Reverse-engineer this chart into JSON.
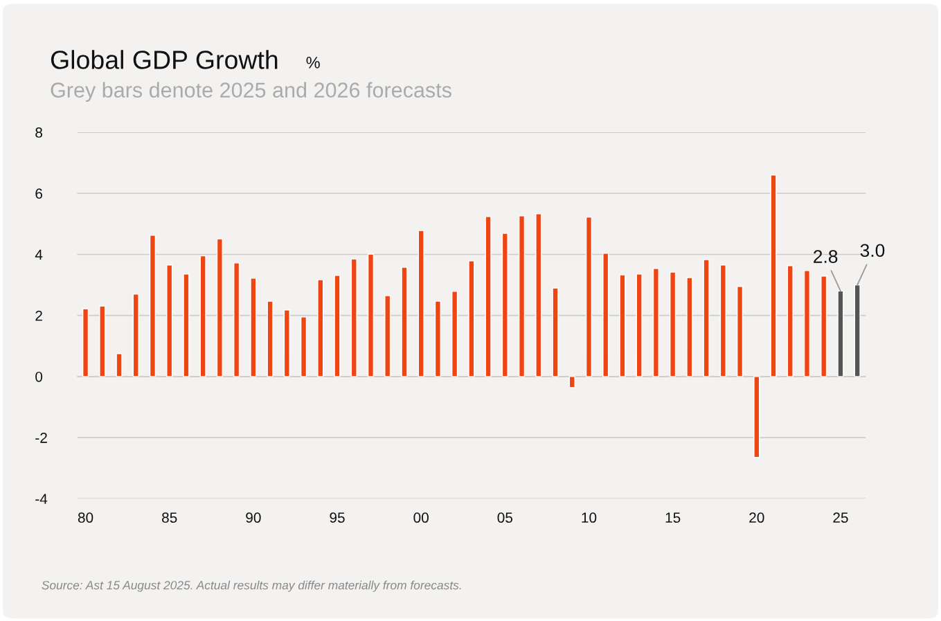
{
  "chart_data": {
    "type": "bar",
    "title": "Global GDP Growth",
    "ylabel": "%",
    "subtitle": "Grey bars denote 2025 and 2026 forecasts",
    "categories": [
      "80",
      null,
      null,
      null,
      null,
      "85",
      null,
      null,
      null,
      null,
      "90",
      null,
      null,
      null,
      null,
      "95",
      null,
      null,
      null,
      null,
      "00",
      null,
      null,
      null,
      null,
      "05",
      null,
      null,
      null,
      null,
      "10",
      null,
      null,
      null,
      null,
      "15",
      null,
      null,
      null,
      null,
      "20",
      null,
      null,
      null,
      null,
      "25",
      null
    ],
    "values": [
      2.22,
      2.31,
      0.75,
      2.7,
      4.63,
      3.65,
      3.36,
      3.95,
      4.51,
      3.72,
      3.22,
      2.47,
      2.18,
      1.95,
      3.17,
      3.31,
      3.85,
      4.01,
      2.65,
      3.58,
      4.78,
      2.47,
      2.79,
      3.79,
      5.24,
      4.69,
      5.26,
      5.33,
      2.9,
      -0.36,
      5.22,
      4.04,
      3.33,
      3.36,
      3.54,
      3.42,
      3.24,
      3.83,
      3.65,
      2.95,
      -2.65,
      6.6,
      3.63,
      3.47,
      3.29,
      2.8,
      3.0
    ],
    "colors": [
      "#ee4512",
      "#ee4512",
      "#ee4512",
      "#ee4512",
      "#ee4512",
      "#ee4512",
      "#ee4512",
      "#ee4512",
      "#ee4512",
      "#ee4512",
      "#ee4512",
      "#ee4512",
      "#ee4512",
      "#ee4512",
      "#ee4512",
      "#ee4512",
      "#ee4512",
      "#ee4512",
      "#ee4512",
      "#ee4512",
      "#ee4512",
      "#ee4512",
      "#ee4512",
      "#ee4512",
      "#ee4512",
      "#ee4512",
      "#ee4512",
      "#ee4512",
      "#ee4512",
      "#ee4512",
      "#ee4512",
      "#ee4512",
      "#ee4512",
      "#ee4512",
      "#ee4512",
      "#ee4512",
      "#ee4512",
      "#ee4512",
      "#ee4512",
      "#ee4512",
      "#ee4512",
      "#ee4512",
      "#ee4512",
      "#ee4512",
      "#ee4512",
      "#555555",
      "#555555"
    ],
    "value_labels": [
      null,
      null,
      null,
      null,
      null,
      null,
      null,
      null,
      null,
      null,
      null,
      null,
      null,
      null,
      null,
      null,
      null,
      null,
      null,
      null,
      null,
      null,
      null,
      null,
      null,
      null,
      null,
      null,
      null,
      null,
      null,
      null,
      null,
      null,
      null,
      null,
      null,
      null,
      null,
      null,
      null,
      null,
      null,
      null,
      null,
      "2.8",
      "3.0"
    ],
    "ylim": [
      -4,
      8
    ],
    "yticks": [
      {
        "value": -4,
        "label": "-4"
      },
      {
        "value": -2,
        "label": "-2"
      },
      0,
      2,
      4,
      6,
      8
    ],
    "grid": "y",
    "legend": false,
    "annotations": [
      "Source: Ast 15 August 2025. Actual results may differ materially from forecasts."
    ]
  }
}
